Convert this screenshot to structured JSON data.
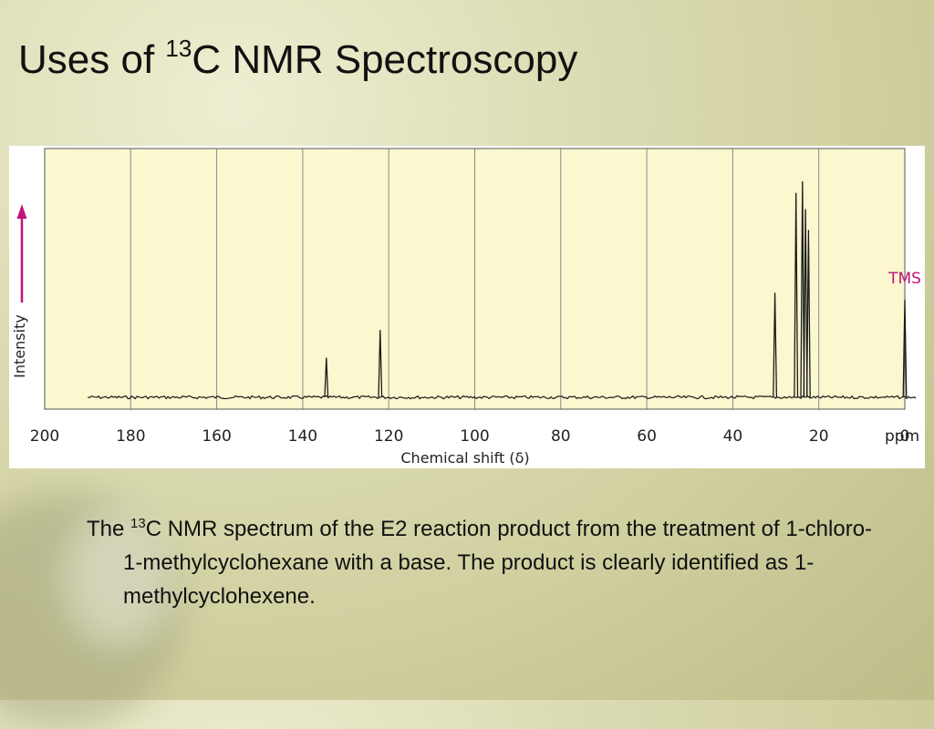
{
  "slide": {
    "title_prefix": "Uses of ",
    "title_sup": "13",
    "title_suffix": "C NMR Spectroscopy",
    "caption_prefix": "The ",
    "caption_sup": "13",
    "caption_text": "C NMR spectrum of the E2 reaction product from the treatment of 1-chloro-1-methylcyclohexane with a base.  The product is clearly identified as 1-methylcyclohexene."
  },
  "colors": {
    "plot_background": "#fbf7cf",
    "accent_magenta": "#c0137a",
    "grid": "#8a8a8a",
    "trace": "#1a1a1a"
  },
  "chart_data": {
    "type": "line",
    "xlabel": "Chemical shift (δ)",
    "ylabel": "Intensity",
    "x_unit": "ppm",
    "xlim": [
      200,
      0
    ],
    "reversed_x": true,
    "ylim": [
      0,
      100
    ],
    "x_ticks": [
      200,
      180,
      160,
      140,
      120,
      100,
      80,
      60,
      40,
      20,
      0
    ],
    "grid": true,
    "baseline_start": 190,
    "baseline_end": -3,
    "annotations": [
      {
        "text": "TMS",
        "x": 0
      }
    ],
    "peaks": [
      {
        "x": 134.5,
        "y": 17
      },
      {
        "x": 122,
        "y": 29
      },
      {
        "x": 30.2,
        "y": 45
      },
      {
        "x": 25.3,
        "y": 88
      },
      {
        "x": 23.8,
        "y": 93
      },
      {
        "x": 23.1,
        "y": 81
      },
      {
        "x": 22.4,
        "y": 72
      },
      {
        "x": 0,
        "y": 42
      }
    ]
  }
}
